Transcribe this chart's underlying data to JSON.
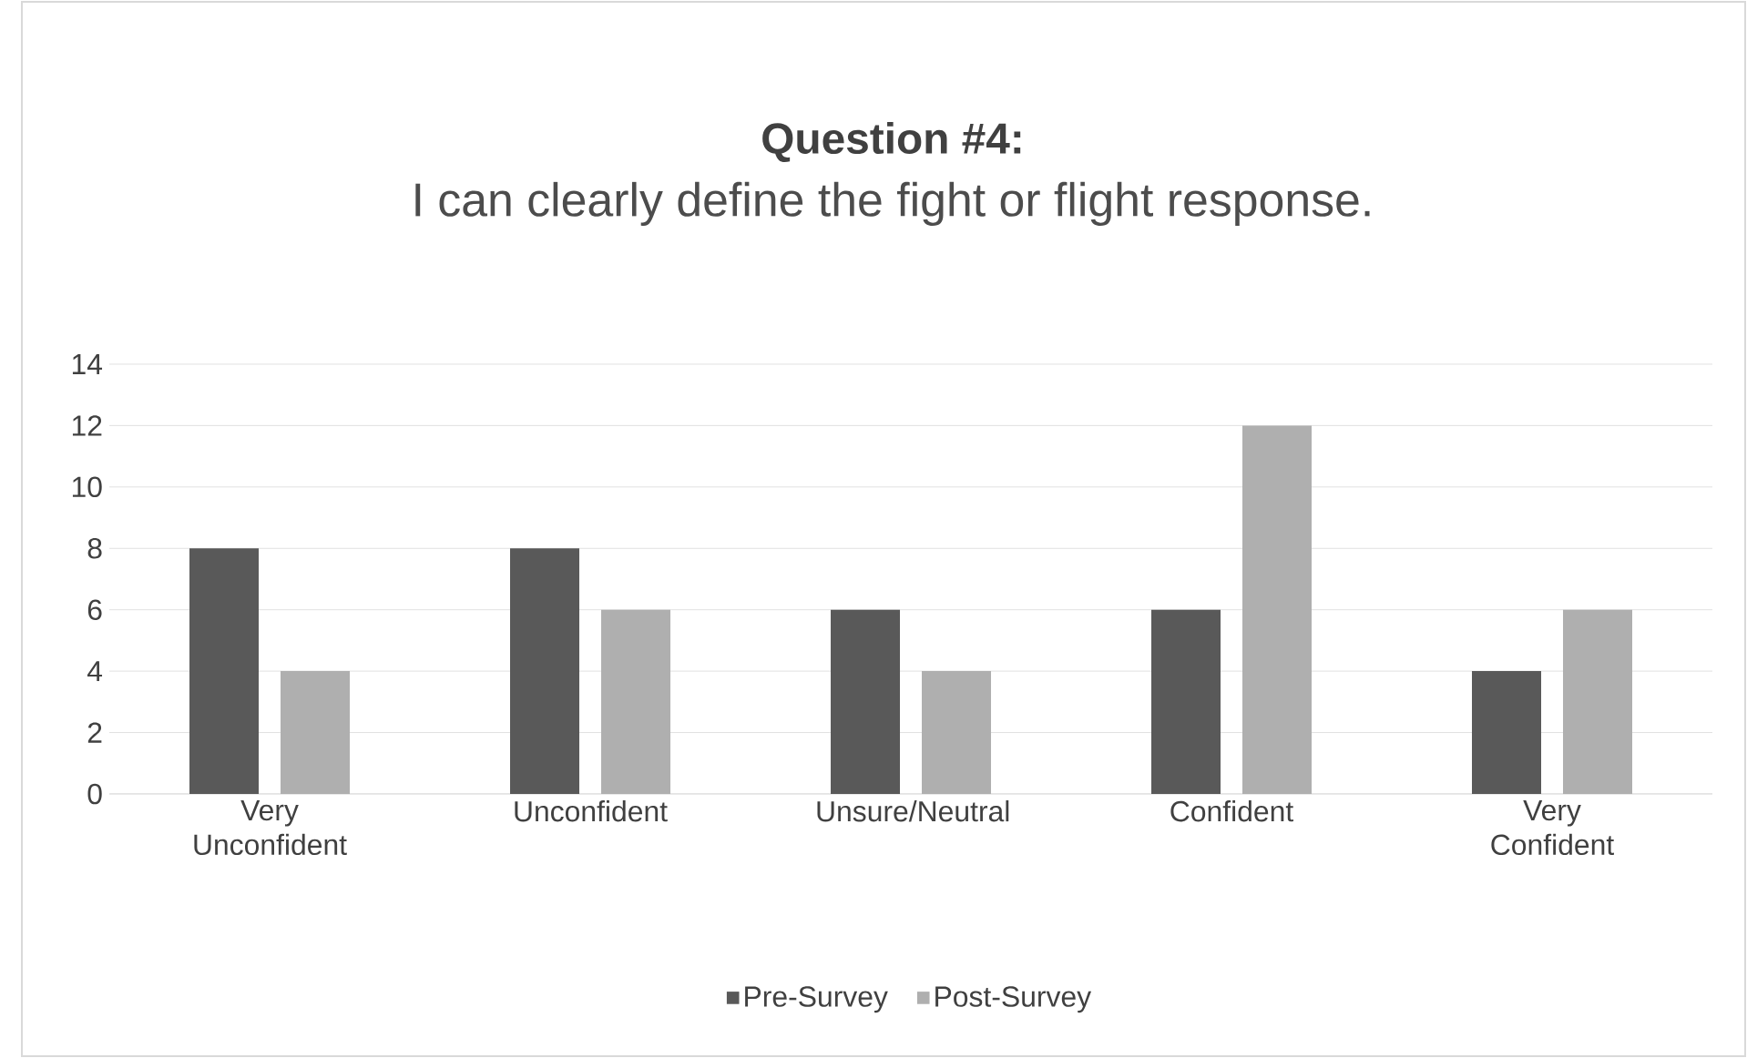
{
  "chart_data": {
    "type": "bar",
    "title": "Question #4:",
    "subtitle": "I can clearly define the fight or flight response.",
    "categories": [
      "Very Unconfident",
      "Unconfident",
      "Unsure/Neutral",
      "Confident",
      "Very Confident"
    ],
    "series": [
      {
        "name": "Pre-Survey",
        "color": "#595959",
        "values": [
          8,
          8,
          6,
          6,
          4
        ]
      },
      {
        "name": "Post-Survey",
        "color": "#afafaf",
        "values": [
          4,
          6,
          4,
          12,
          6
        ]
      }
    ],
    "ylim": [
      0,
      14
    ],
    "yticks": [
      0,
      2,
      4,
      6,
      8,
      10,
      12,
      14
    ],
    "grid": "y",
    "legend": "bottom"
  }
}
